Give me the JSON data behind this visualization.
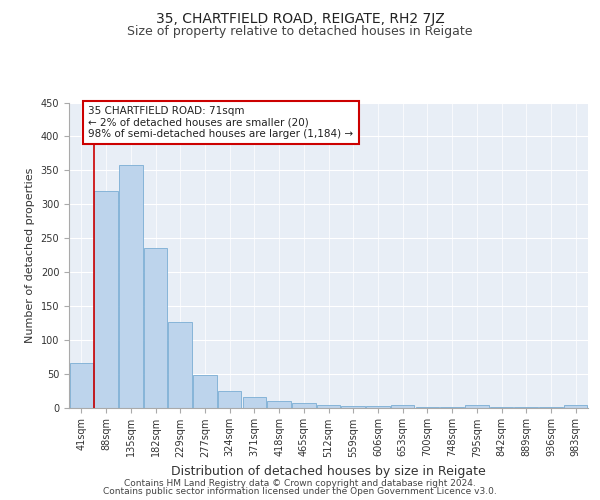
{
  "title": "35, CHARTFIELD ROAD, REIGATE, RH2 7JZ",
  "subtitle": "Size of property relative to detached houses in Reigate",
  "xlabel": "Distribution of detached houses by size in Reigate",
  "ylabel": "Number of detached properties",
  "footer_line1": "Contains HM Land Registry data © Crown copyright and database right 2024.",
  "footer_line2": "Contains public sector information licensed under the Open Government Licence v3.0.",
  "bar_labels": [
    "41sqm",
    "88sqm",
    "135sqm",
    "182sqm",
    "229sqm",
    "277sqm",
    "324sqm",
    "371sqm",
    "418sqm",
    "465sqm",
    "512sqm",
    "559sqm",
    "606sqm",
    "653sqm",
    "700sqm",
    "748sqm",
    "795sqm",
    "842sqm",
    "889sqm",
    "936sqm",
    "983sqm"
  ],
  "bar_values": [
    65,
    320,
    358,
    235,
    126,
    48,
    25,
    15,
    10,
    6,
    4,
    2,
    2,
    4,
    1,
    1,
    4,
    1,
    1,
    1,
    3
  ],
  "bar_color": "#bdd4ec",
  "bar_edge_color": "#7aadd4",
  "annotation_line1": "35 CHARTFIELD ROAD: 71sqm",
  "annotation_line2": "← 2% of detached houses are smaller (20)",
  "annotation_line3": "98% of semi-detached houses are larger (1,184) →",
  "annotation_box_color": "#cc0000",
  "vline_x": 0.5,
  "ylim": [
    0,
    450
  ],
  "yticks": [
    0,
    50,
    100,
    150,
    200,
    250,
    300,
    350,
    400,
    450
  ],
  "background_color": "#e8eef6",
  "grid_color": "#ffffff",
  "title_fontsize": 10,
  "subtitle_fontsize": 9,
  "xlabel_fontsize": 9,
  "ylabel_fontsize": 8,
  "tick_fontsize": 7,
  "annotation_fontsize": 7.5,
  "footer_fontsize": 6.5
}
